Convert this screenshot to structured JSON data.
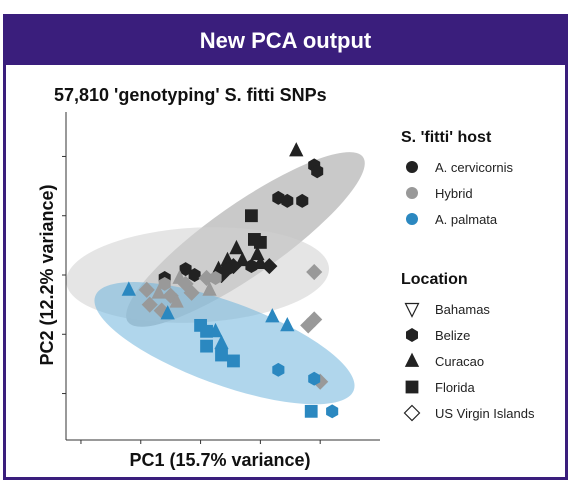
{
  "banner": {
    "title": "New PCA output"
  },
  "colors": {
    "cervicornis": "#222222",
    "hybrid": "#999999",
    "palmata": "#2b88c0",
    "banner": "#3a1e7c"
  },
  "chart_data": {
    "type": "scatter",
    "title": "57,810 'genotyping' S. fitti SNPs",
    "xlabel": "PC1 (15.7% variance)",
    "ylabel": "PC2 (12.2% variance)",
    "xlim": [
      -0.45,
      0.6
    ],
    "ylim": [
      -0.55,
      0.55
    ],
    "grid": false,
    "legend_position": "right",
    "legend_host_title": "S. 'fitti' host",
    "legend_location_title": "Location",
    "hosts": [
      "A. cervicornis",
      "Hybrid",
      "A. palmata"
    ],
    "locations": [
      "Bahamas",
      "Belize",
      "Curacao",
      "Florida",
      "US Virgin Islands"
    ],
    "ellipses": [
      {
        "host": "A. cervicornis",
        "cx": 0.15,
        "cy": 0.12,
        "rx": 0.48,
        "ry": 0.12,
        "angle": -35
      },
      {
        "host": "Hybrid",
        "cx": -0.01,
        "cy": 0.0,
        "rx": 0.44,
        "ry": 0.16,
        "angle": -3
      },
      {
        "host": "A. palmata",
        "cx": 0.08,
        "cy": -0.23,
        "rx": 0.46,
        "ry": 0.14,
        "angle": 20
      }
    ],
    "points": [
      {
        "host": "A. cervicornis",
        "location": "Curacao",
        "x": 0.32,
        "y": 0.42
      },
      {
        "host": "A. cervicornis",
        "location": "Belize",
        "x": 0.38,
        "y": 0.37
      },
      {
        "host": "A. cervicornis",
        "location": "Belize",
        "x": 0.39,
        "y": 0.35
      },
      {
        "host": "A. cervicornis",
        "location": "Belize",
        "x": 0.26,
        "y": 0.26
      },
      {
        "host": "A. cervicornis",
        "location": "Belize",
        "x": 0.29,
        "y": 0.25
      },
      {
        "host": "A. cervicornis",
        "location": "Belize",
        "x": 0.34,
        "y": 0.25
      },
      {
        "host": "A. cervicornis",
        "location": "Florida",
        "x": 0.17,
        "y": 0.2
      },
      {
        "host": "A. cervicornis",
        "location": "Florida",
        "x": 0.18,
        "y": 0.12
      },
      {
        "host": "A. cervicornis",
        "location": "Florida",
        "x": 0.2,
        "y": 0.11
      },
      {
        "host": "A. cervicornis",
        "location": "Curacao",
        "x": 0.12,
        "y": 0.09
      },
      {
        "host": "A. cervicornis",
        "location": "Curacao",
        "x": 0.19,
        "y": 0.07
      },
      {
        "host": "A. cervicornis",
        "location": "Curacao",
        "x": 0.14,
        "y": 0.05
      },
      {
        "host": "A. cervicornis",
        "location": "Curacao",
        "x": 0.09,
        "y": 0.05
      },
      {
        "host": "A. cervicornis",
        "location": "Curacao",
        "x": 0.2,
        "y": 0.04
      },
      {
        "host": "A. cervicornis",
        "location": "Belize",
        "x": 0.17,
        "y": 0.03
      },
      {
        "host": "A. cervicornis",
        "location": "US Virgin Islands",
        "x": 0.11,
        "y": 0.03
      },
      {
        "host": "A. cervicornis",
        "location": "US Virgin Islands",
        "x": 0.23,
        "y": 0.03
      },
      {
        "host": "A. cervicornis",
        "location": "Belize",
        "x": 0.09,
        "y": 0.02
      },
      {
        "host": "A. cervicornis",
        "location": "Belize",
        "x": -0.05,
        "y": 0.02
      },
      {
        "host": "A. cervicornis",
        "location": "Belize",
        "x": -0.02,
        "y": 0.0
      },
      {
        "host": "A. cervicornis",
        "location": "Curacao",
        "x": 0.06,
        "y": 0.02
      },
      {
        "host": "A. cervicornis",
        "location": "US Virgin Islands",
        "x": 0.07,
        "y": 0.0
      },
      {
        "host": "A. cervicornis",
        "location": "Belize",
        "x": -0.12,
        "y": -0.01
      },
      {
        "host": "Hybrid",
        "location": "US Virgin Islands",
        "x": 0.38,
        "y": 0.01
      },
      {
        "host": "Hybrid",
        "location": "US Virgin Islands",
        "x": 0.02,
        "y": -0.01
      },
      {
        "host": "Hybrid",
        "location": "Belize",
        "x": 0.05,
        "y": -0.01
      },
      {
        "host": "Hybrid",
        "location": "Curacao",
        "x": -0.07,
        "y": -0.01
      },
      {
        "host": "Hybrid",
        "location": "Belize",
        "x": -0.12,
        "y": -0.03
      },
      {
        "host": "Hybrid",
        "location": "US Virgin Islands",
        "x": -0.05,
        "y": -0.03
      },
      {
        "host": "Hybrid",
        "location": "Curacao",
        "x": 0.03,
        "y": -0.05
      },
      {
        "host": "Hybrid",
        "location": "US Virgin Islands",
        "x": -0.03,
        "y": -0.06
      },
      {
        "host": "Hybrid",
        "location": "US Virgin Islands",
        "x": -0.1,
        "y": -0.07
      },
      {
        "host": "Hybrid",
        "location": "US Virgin Islands",
        "x": -0.18,
        "y": -0.05
      },
      {
        "host": "Hybrid",
        "location": "Curacao",
        "x": -0.14,
        "y": -0.06
      },
      {
        "host": "Hybrid",
        "location": "Curacao",
        "x": -0.08,
        "y": -0.09
      },
      {
        "host": "Hybrid",
        "location": "US Virgin Islands",
        "x": -0.17,
        "y": -0.1
      },
      {
        "host": "Hybrid",
        "location": "US Virgin Islands",
        "x": -0.13,
        "y": -0.12
      },
      {
        "host": "Hybrid",
        "location": "US Virgin Islands",
        "x": 0.38,
        "y": -0.15
      },
      {
        "host": "Hybrid",
        "location": "US Virgin Islands",
        "x": 0.36,
        "y": -0.17
      },
      {
        "host": "Hybrid",
        "location": "US Virgin Islands",
        "x": 0.4,
        "y": -0.36
      },
      {
        "host": "A. palmata",
        "location": "Curacao",
        "x": -0.24,
        "y": -0.05
      },
      {
        "host": "A. palmata",
        "location": "Curacao",
        "x": -0.11,
        "y": -0.13
      },
      {
        "host": "A. palmata",
        "location": "Florida",
        "x": 0.0,
        "y": -0.17
      },
      {
        "host": "A. palmata",
        "location": "Florida",
        "x": 0.02,
        "y": -0.19
      },
      {
        "host": "A. palmata",
        "location": "Curacao",
        "x": 0.05,
        "y": -0.19
      },
      {
        "host": "A. palmata",
        "location": "Curacao",
        "x": 0.24,
        "y": -0.14
      },
      {
        "host": "A. palmata",
        "location": "Curacao",
        "x": 0.29,
        "y": -0.17
      },
      {
        "host": "A. palmata",
        "location": "Florida",
        "x": 0.02,
        "y": -0.24
      },
      {
        "host": "A. palmata",
        "location": "Curacao",
        "x": 0.07,
        "y": -0.23
      },
      {
        "host": "A. palmata",
        "location": "Florida",
        "x": 0.07,
        "y": -0.27
      },
      {
        "host": "A. palmata",
        "location": "Florida",
        "x": 0.11,
        "y": -0.29
      },
      {
        "host": "A. palmata",
        "location": "Belize",
        "x": 0.26,
        "y": -0.32
      },
      {
        "host": "A. palmata",
        "location": "Belize",
        "x": 0.38,
        "y": -0.35
      },
      {
        "host": "A. palmata",
        "location": "Florida",
        "x": 0.37,
        "y": -0.46
      },
      {
        "host": "A. palmata",
        "location": "Belize",
        "x": 0.44,
        "y": -0.46
      }
    ]
  }
}
